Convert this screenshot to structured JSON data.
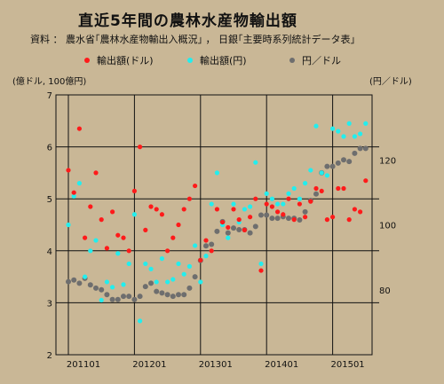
{
  "header": {
    "title": "直近5年間の農林水産物輸出額",
    "source": "資料 ： 農水省｢農林水産物輸出入概況｣ ， 日銀｢主要時系列統計データ表｣"
  },
  "chart_data": {
    "type": "scatter",
    "left_axis_label": "(億ドル, 100億円)",
    "right_axis_label": "(円／ドル)",
    "y_left_lim": [
      2,
      7
    ],
    "y_left_ticks": [
      "2",
      "3",
      "4",
      "5",
      "6",
      "7"
    ],
    "y_right_lim": [
      60,
      140
    ],
    "y_right_ticks": [
      "80",
      "100",
      "120"
    ],
    "x_tick_labels": [
      "201101",
      "201201",
      "201301",
      "201401",
      "201501"
    ],
    "x_tick_index": [
      0,
      12,
      24,
      36,
      48
    ],
    "grid": true,
    "legend_position": "top",
    "series": [
      {
        "name": "輸出額(ドル)",
        "color": "#ff1a1a",
        "axis": "left",
        "values": [
          5.55,
          5.12,
          6.35,
          4.25,
          4.85,
          5.5,
          4.6,
          4.05,
          4.75,
          4.3,
          4.25,
          4.0,
          5.15,
          6.0,
          4.4,
          4.85,
          4.8,
          4.7,
          4.0,
          4.25,
          4.5,
          4.8,
          5.0,
          5.25,
          3.82,
          4.2,
          4.0,
          4.8,
          4.55,
          4.45,
          4.8,
          4.6,
          4.4,
          4.65,
          5.0,
          3.62,
          4.9,
          4.85,
          4.75,
          4.7,
          5.0,
          4.6,
          4.9,
          4.65,
          4.95,
          5.2,
          5.15,
          4.6,
          4.65,
          5.2,
          5.2,
          4.6,
          4.8,
          4.75,
          5.35
        ]
      },
      {
        "name": "輸出額(円)",
        "color": "#22eeee",
        "axis": "left",
        "values": [
          4.5,
          5.05,
          5.3,
          3.5,
          4.0,
          4.2,
          3.05,
          3.4,
          3.3,
          3.95,
          3.35,
          3.75,
          4.7,
          2.65,
          3.75,
          3.65,
          3.4,
          3.85,
          3.4,
          3.45,
          3.75,
          3.55,
          3.7,
          4.1,
          3.4,
          3.9,
          4.9,
          5.5,
          4.5,
          4.25,
          4.9,
          4.55,
          4.8,
          4.85,
          5.7,
          3.75,
          5.1,
          5.0,
          4.9,
          4.9,
          5.1,
          5.2,
          5.0,
          5.3,
          5.55,
          6.4,
          5.5,
          5.45,
          6.35,
          6.3,
          6.2,
          6.45,
          6.2,
          6.25,
          6.45
        ]
      },
      {
        "name": "円／ドル",
        "color": "#6e6e6e",
        "axis": "right",
        "values": [
          82.5,
          83,
          82,
          83.5,
          81.5,
          80.5,
          80,
          78.5,
          77,
          77,
          78,
          78,
          77,
          78,
          81,
          82,
          79.5,
          79,
          78.5,
          78,
          78.5,
          78.5,
          80.5,
          84,
          89,
          93.5,
          94,
          98,
          101,
          97.5,
          99,
          98.5,
          98.5,
          97.5,
          99.5,
          103,
          103,
          102,
          102,
          102.5,
          102,
          102,
          101.5,
          104,
          107.5,
          109.5,
          116,
          118,
          118,
          119,
          120,
          119.5,
          122,
          123.5,
          123.5
        ]
      }
    ]
  }
}
